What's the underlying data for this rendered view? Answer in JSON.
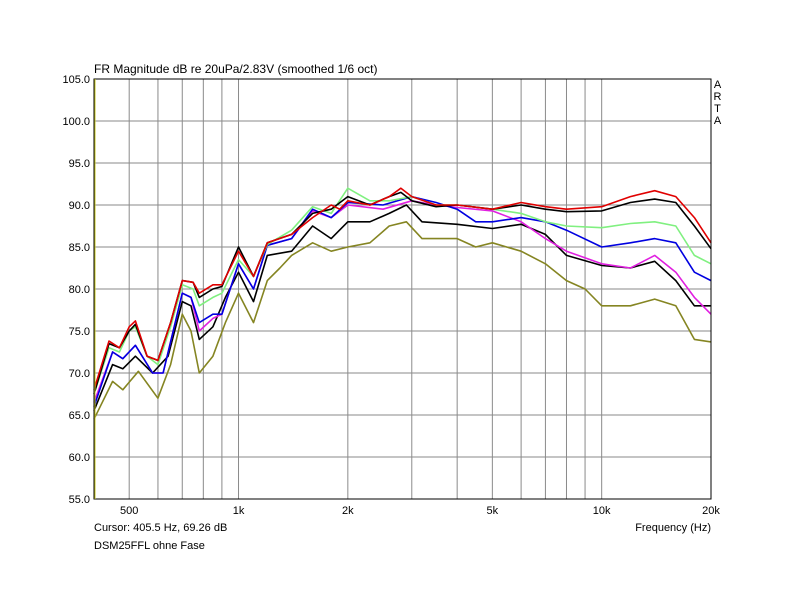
{
  "chart_data": {
    "type": "line",
    "title": "FR Magnitude dB re 20uPa/2.83V (smoothed 1/6 oct)",
    "brand": "ARTA",
    "xlabel": "Frequency (Hz)",
    "ylabel": "",
    "cursor": "Cursor: 405.5 Hz, 69.26 dB",
    "caption": "DSM25FFL ohne Fase",
    "xscale": "log",
    "xlim": [
      400,
      20000
    ],
    "ylim": [
      55,
      105
    ],
    "grid": true,
    "xgrid": [
      500,
      600,
      700,
      800,
      900,
      1000,
      2000,
      3000,
      4000,
      5000,
      6000,
      7000,
      8000,
      9000,
      10000,
      20000
    ],
    "xticks": [
      {
        "v": 500,
        "label": "500"
      },
      {
        "v": 1000,
        "label": "1k"
      },
      {
        "v": 2000,
        "label": "2k"
      },
      {
        "v": 5000,
        "label": "5k"
      },
      {
        "v": 10000,
        "label": "10k"
      },
      {
        "v": 20000,
        "label": "20k"
      }
    ],
    "yticks": [
      {
        "v": 105,
        "label": "105.0"
      },
      {
        "v": 100,
        "label": "100.0"
      },
      {
        "v": 95,
        "label": "95.0"
      },
      {
        "v": 90,
        "label": "90.0"
      },
      {
        "v": 85,
        "label": "85.0"
      },
      {
        "v": 80,
        "label": "80.0"
      },
      {
        "v": 75,
        "label": "75.0"
      },
      {
        "v": 70,
        "label": "70.0"
      },
      {
        "v": 65,
        "label": "65.0"
      },
      {
        "v": 60,
        "label": "60.0"
      },
      {
        "v": 55,
        "label": "55.0"
      }
    ],
    "series": [
      {
        "name": "olive",
        "color": "#858522",
        "points": [
          [
            400,
            64.5
          ],
          [
            450,
            69
          ],
          [
            480,
            68
          ],
          [
            530,
            70.2
          ],
          [
            600,
            67
          ],
          [
            650,
            71
          ],
          [
            700,
            77
          ],
          [
            740,
            75
          ],
          [
            780,
            70
          ],
          [
            850,
            72
          ],
          [
            920,
            76
          ],
          [
            1000,
            79.5
          ],
          [
            1100,
            76
          ],
          [
            1200,
            81
          ],
          [
            1300,
            82.5
          ],
          [
            1400,
            84
          ],
          [
            1600,
            85.5
          ],
          [
            1800,
            84.5
          ],
          [
            2000,
            85
          ],
          [
            2300,
            85.5
          ],
          [
            2600,
            87.5
          ],
          [
            2900,
            88
          ],
          [
            3200,
            86
          ],
          [
            4000,
            86
          ],
          [
            4500,
            85
          ],
          [
            5000,
            85.5
          ],
          [
            6000,
            84.5
          ],
          [
            7000,
            83
          ],
          [
            8000,
            81
          ],
          [
            9000,
            80
          ],
          [
            10000,
            78
          ],
          [
            12000,
            78
          ],
          [
            14000,
            78.8
          ],
          [
            16000,
            78
          ],
          [
            18000,
            74
          ],
          [
            20000,
            73.7
          ]
        ]
      },
      {
        "name": "black-lower",
        "color": "#000000",
        "points": [
          [
            400,
            65.5
          ],
          [
            450,
            71
          ],
          [
            480,
            70.5
          ],
          [
            520,
            72
          ],
          [
            580,
            70
          ],
          [
            640,
            72
          ],
          [
            700,
            78.5
          ],
          [
            740,
            78
          ],
          [
            780,
            74
          ],
          [
            850,
            75.5
          ],
          [
            920,
            79
          ],
          [
            1000,
            82
          ],
          [
            1100,
            78.5
          ],
          [
            1200,
            84
          ],
          [
            1400,
            84.5
          ],
          [
            1600,
            87.5
          ],
          [
            1800,
            86
          ],
          [
            2000,
            88
          ],
          [
            2300,
            88
          ],
          [
            2600,
            89
          ],
          [
            2900,
            90
          ],
          [
            3200,
            88
          ],
          [
            4000,
            87.7
          ],
          [
            5000,
            87.2
          ],
          [
            6000,
            87.7
          ],
          [
            7000,
            86.5
          ],
          [
            8000,
            84
          ],
          [
            10000,
            82.8
          ],
          [
            12000,
            82.5
          ],
          [
            14000,
            83.3
          ],
          [
            16000,
            81
          ],
          [
            18000,
            78
          ],
          [
            20000,
            78
          ]
        ]
      },
      {
        "name": "magenta",
        "color": "#e020e0",
        "points": [
          [
            400,
            66.5
          ],
          [
            450,
            72.5
          ],
          [
            480,
            71.7
          ],
          [
            520,
            73.3
          ],
          [
            580,
            70
          ],
          [
            620,
            70
          ],
          [
            700,
            79.5
          ],
          [
            740,
            79
          ],
          [
            780,
            75
          ],
          [
            850,
            76.5
          ],
          [
            900,
            77
          ],
          [
            1000,
            83
          ],
          [
            1100,
            80
          ],
          [
            1200,
            85.2
          ],
          [
            1400,
            86
          ],
          [
            1600,
            89.3
          ],
          [
            1800,
            88.5
          ],
          [
            2000,
            90
          ],
          [
            2500,
            89.5
          ],
          [
            3000,
            90.5
          ],
          [
            3500,
            90
          ],
          [
            4000,
            89.7
          ],
          [
            5000,
            89.3
          ],
          [
            6000,
            88
          ],
          [
            7000,
            86
          ],
          [
            8000,
            84.5
          ],
          [
            10000,
            83
          ],
          [
            12000,
            82.5
          ],
          [
            14000,
            84
          ],
          [
            16000,
            82
          ],
          [
            18000,
            79
          ],
          [
            20000,
            77
          ]
        ]
      },
      {
        "name": "blue",
        "color": "#0000e0",
        "points": [
          [
            400,
            66
          ],
          [
            450,
            72.5
          ],
          [
            480,
            71.7
          ],
          [
            520,
            73.3
          ],
          [
            580,
            70
          ],
          [
            620,
            70
          ],
          [
            700,
            79.5
          ],
          [
            740,
            79
          ],
          [
            780,
            76
          ],
          [
            850,
            77
          ],
          [
            900,
            77
          ],
          [
            1000,
            83
          ],
          [
            1100,
            80
          ],
          [
            1200,
            85.2
          ],
          [
            1400,
            86
          ],
          [
            1600,
            89.5
          ],
          [
            1800,
            88.5
          ],
          [
            2000,
            90.3
          ],
          [
            2500,
            90
          ],
          [
            3000,
            91
          ],
          [
            3500,
            90.3
          ],
          [
            4000,
            89.5
          ],
          [
            4500,
            88
          ],
          [
            5000,
            88
          ],
          [
            6000,
            88.5
          ],
          [
            7000,
            88
          ],
          [
            8000,
            87
          ],
          [
            10000,
            85
          ],
          [
            12000,
            85.5
          ],
          [
            14000,
            86
          ],
          [
            16000,
            85.5
          ],
          [
            18000,
            82
          ],
          [
            20000,
            81
          ]
        ]
      },
      {
        "name": "green",
        "color": "#80f080",
        "points": [
          [
            400,
            67.5
          ],
          [
            440,
            73
          ],
          [
            470,
            72.5
          ],
          [
            500,
            75
          ],
          [
            520,
            75.5
          ],
          [
            560,
            72
          ],
          [
            600,
            71
          ],
          [
            650,
            75.5
          ],
          [
            700,
            80.5
          ],
          [
            750,
            80
          ],
          [
            780,
            78
          ],
          [
            850,
            79
          ],
          [
            900,
            79.5
          ],
          [
            1000,
            83.5
          ],
          [
            1100,
            81.5
          ],
          [
            1200,
            85.3
          ],
          [
            1400,
            87
          ],
          [
            1600,
            89.8
          ],
          [
            1800,
            89
          ],
          [
            2000,
            92
          ],
          [
            2300,
            90.5
          ],
          [
            2600,
            90.5
          ],
          [
            3000,
            91
          ],
          [
            3500,
            90
          ],
          [
            4000,
            90
          ],
          [
            5000,
            89.5
          ],
          [
            6000,
            89
          ],
          [
            7000,
            88
          ],
          [
            8000,
            87.5
          ],
          [
            10000,
            87.3
          ],
          [
            12000,
            87.8
          ],
          [
            14000,
            88
          ],
          [
            16000,
            87.5
          ],
          [
            18000,
            84
          ],
          [
            20000,
            83
          ]
        ]
      },
      {
        "name": "black-upper",
        "color": "#000000",
        "points": [
          [
            400,
            67.5
          ],
          [
            440,
            73.5
          ],
          [
            470,
            73
          ],
          [
            500,
            75
          ],
          [
            520,
            75.8
          ],
          [
            560,
            72
          ],
          [
            600,
            71.5
          ],
          [
            650,
            76
          ],
          [
            700,
            81
          ],
          [
            750,
            80.8
          ],
          [
            780,
            79
          ],
          [
            850,
            80
          ],
          [
            900,
            80.3
          ],
          [
            1000,
            85
          ],
          [
            1100,
            81.5
          ],
          [
            1200,
            85.5
          ],
          [
            1400,
            86.5
          ],
          [
            1600,
            89
          ],
          [
            1800,
            89.5
          ],
          [
            2000,
            91
          ],
          [
            2300,
            90
          ],
          [
            2600,
            91
          ],
          [
            2800,
            91.5
          ],
          [
            3000,
            90.5
          ],
          [
            3500,
            89.8
          ],
          [
            4000,
            90
          ],
          [
            5000,
            89.5
          ],
          [
            6000,
            90
          ],
          [
            7000,
            89.5
          ],
          [
            8000,
            89.2
          ],
          [
            10000,
            89.3
          ],
          [
            12000,
            90.3
          ],
          [
            14000,
            90.7
          ],
          [
            16000,
            90.3
          ],
          [
            18000,
            87.5
          ],
          [
            20000,
            84.8
          ]
        ]
      },
      {
        "name": "red",
        "color": "#e00000",
        "points": [
          [
            400,
            68
          ],
          [
            440,
            73.8
          ],
          [
            470,
            73
          ],
          [
            500,
            75.5
          ],
          [
            520,
            76.2
          ],
          [
            560,
            72
          ],
          [
            600,
            71.5
          ],
          [
            650,
            76
          ],
          [
            700,
            81
          ],
          [
            750,
            80.8
          ],
          [
            780,
            79.5
          ],
          [
            850,
            80.5
          ],
          [
            900,
            80.5
          ],
          [
            1000,
            84.5
          ],
          [
            1100,
            81.5
          ],
          [
            1200,
            85.5
          ],
          [
            1400,
            86.5
          ],
          [
            1600,
            88.5
          ],
          [
            1800,
            90
          ],
          [
            1900,
            89.5
          ],
          [
            2000,
            90.5
          ],
          [
            2300,
            90
          ],
          [
            2600,
            91
          ],
          [
            2800,
            92
          ],
          [
            3000,
            91
          ],
          [
            3500,
            90
          ],
          [
            4000,
            90
          ],
          [
            5000,
            89.5
          ],
          [
            6000,
            90.3
          ],
          [
            7000,
            89.8
          ],
          [
            8000,
            89.5
          ],
          [
            10000,
            89.8
          ],
          [
            12000,
            91
          ],
          [
            14000,
            91.7
          ],
          [
            16000,
            91
          ],
          [
            18000,
            88.5
          ],
          [
            20000,
            85.5
          ]
        ]
      }
    ]
  }
}
